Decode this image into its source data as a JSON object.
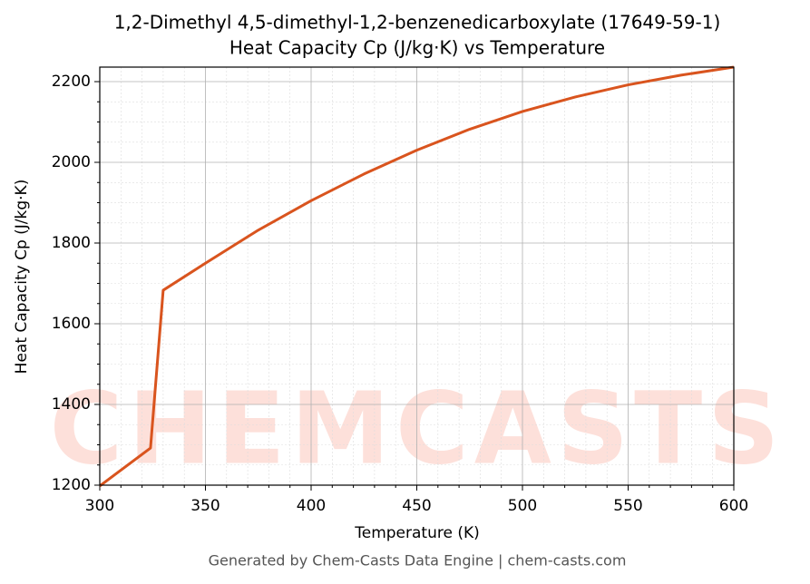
{
  "chart_data": {
    "type": "line",
    "title": "1,2-Dimethyl 4,5-dimethyl-1,2-benzenedicarboxylate (17649-59-1)",
    "subtitle": "Heat Capacity Cp (J/kg·K) vs Temperature",
    "x_label": "Temperature (K)",
    "y_label": "Heat Capacity Cp (J/kg·K)",
    "footer": "Generated by Chem-Casts Data Engine | chem-casts.com",
    "watermark": "CHEMCASTS",
    "x": [
      300,
      324,
      330,
      350,
      375,
      400,
      425,
      450,
      475,
      500,
      525,
      550,
      575,
      600
    ],
    "series": [
      {
        "name": "Cp",
        "color": "#d9541e",
        "values": [
          1198,
          1292,
          1683,
          1750,
          1832,
          1905,
          1971,
          2030,
          2082,
          2126,
          2162,
          2192,
          2216,
          2236
        ]
      }
    ],
    "xlim": [
      300,
      600
    ],
    "ylim": [
      1200,
      2236
    ],
    "xticks": [
      300,
      350,
      400,
      450,
      500,
      550,
      600
    ],
    "yticks": [
      1200,
      1400,
      1600,
      1800,
      2000,
      2200
    ],
    "xminor": [
      310,
      320,
      330,
      340,
      360,
      370,
      380,
      390,
      410,
      420,
      430,
      440,
      460,
      470,
      480,
      490,
      510,
      520,
      530,
      540,
      560,
      570,
      580,
      590
    ],
    "yminor": [
      1250,
      1300,
      1350,
      1450,
      1500,
      1550,
      1650,
      1700,
      1750,
      1850,
      1900,
      1950,
      2050,
      2100,
      2150
    ],
    "grid": true
  }
}
